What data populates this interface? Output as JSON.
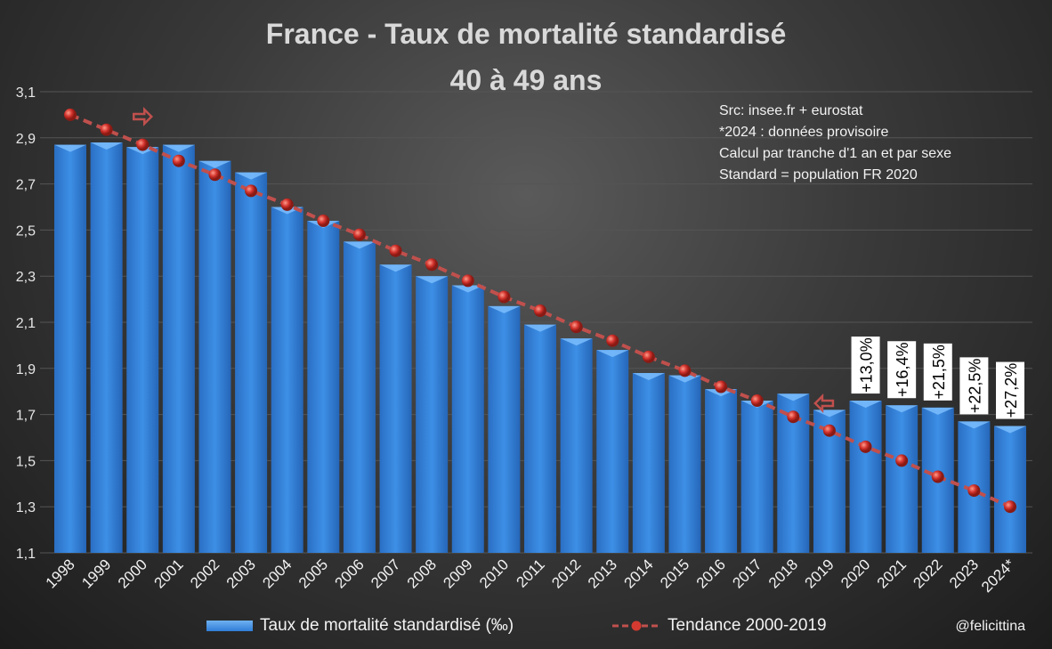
{
  "chart_data": {
    "type": "bar",
    "title": "France - Taux de mortalité standardisé",
    "subtitle": "40 à 49 ans",
    "categories": [
      "1998",
      "1999",
      "2000",
      "2001",
      "2002",
      "2003",
      "2004",
      "2005",
      "2006",
      "2007",
      "2008",
      "2009",
      "2010",
      "2011",
      "2012",
      "2013",
      "2014",
      "2015",
      "2016",
      "2017",
      "2018",
      "2019",
      "2020",
      "2021",
      "2022",
      "2023",
      "2024*"
    ],
    "series": [
      {
        "name": "Taux de mortalité standardisé (‰)",
        "type": "bar",
        "color": "#2f7ed8",
        "values": [
          2.87,
          2.88,
          2.86,
          2.87,
          2.8,
          2.75,
          2.6,
          2.54,
          2.45,
          2.35,
          2.3,
          2.26,
          2.17,
          2.09,
          2.03,
          1.98,
          1.88,
          1.87,
          1.81,
          1.76,
          1.79,
          1.72,
          1.76,
          1.74,
          1.73,
          1.67,
          1.65
        ]
      },
      {
        "name": "Tendance 2000-2019",
        "type": "line",
        "style": "dashed",
        "color": "#c0504d",
        "values": [
          3.0,
          2.935,
          2.87,
          2.8,
          2.74,
          2.67,
          2.61,
          2.54,
          2.48,
          2.41,
          2.35,
          2.28,
          2.21,
          2.15,
          2.08,
          2.02,
          1.95,
          1.89,
          1.82,
          1.76,
          1.69,
          1.63,
          1.56,
          1.5,
          1.43,
          1.37,
          1.3
        ]
      }
    ],
    "ylim": [
      1.1,
      3.1
    ],
    "yticks": [
      "1,1",
      "1,3",
      "1,5",
      "1,7",
      "1,9",
      "2,1",
      "2,3",
      "2,5",
      "2,7",
      "2,9",
      "3,1"
    ],
    "grid": true,
    "legend": "bottom",
    "annotations": [
      {
        "category": "2020",
        "text": "+13,0%"
      },
      {
        "category": "2021",
        "text": "+16,4%"
      },
      {
        "category": "2022",
        "text": "+21,5%"
      },
      {
        "category": "2023",
        "text": "+22,5%"
      },
      {
        "category": "2024*",
        "text": "+27,2%"
      }
    ],
    "markers": [
      {
        "category": "2000",
        "icon": "arrow-right-icon"
      },
      {
        "category": "2019",
        "icon": "arrow-left-icon"
      }
    ],
    "notes": [
      "Src: insee.fr + eurostat",
      "*2024 : données provisoire",
      "Calcul par tranche d'1 an et par sexe",
      "Standard = population FR 2020"
    ],
    "credit": "@felicittina"
  }
}
